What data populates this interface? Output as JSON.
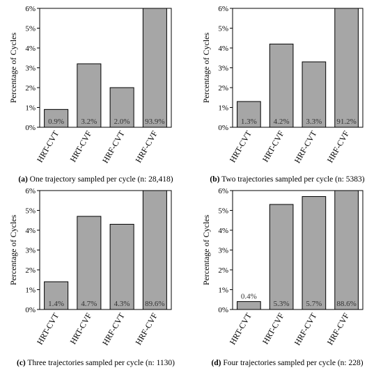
{
  "chart_data": [
    {
      "type": "bar",
      "ylabel": "Percentage of Cycles",
      "ylim": [
        0,
        6
      ],
      "yticks": [
        "0%",
        "1%",
        "2%",
        "3%",
        "4%",
        "5%",
        "6%"
      ],
      "categories": [
        "HRT-CVT",
        "HRT-CVF",
        "HRF-CVT",
        "HRF-CVF"
      ],
      "values": [
        0.9,
        3.2,
        2.0,
        93.9
      ],
      "data_labels": [
        "0.9%",
        "3.2%",
        "2.0%",
        "93.9%"
      ],
      "bar_color": "#a6a6a6",
      "caption_letter": "(a)",
      "caption_text": " One trajectory sampled per cycle (n: 28,418)"
    },
    {
      "type": "bar",
      "ylabel": "Percentage of Cycles",
      "ylim": [
        0,
        6
      ],
      "yticks": [
        "0%",
        "1%",
        "2%",
        "3%",
        "4%",
        "5%",
        "6%"
      ],
      "categories": [
        "HRT-CVT",
        "HRT-CVF",
        "HRF-CVT",
        "HRF-CVF"
      ],
      "values": [
        1.3,
        4.2,
        3.3,
        91.2
      ],
      "data_labels": [
        "1.3%",
        "4.2%",
        "3.3%",
        "91.2%"
      ],
      "bar_color": "#a6a6a6",
      "caption_letter": "(b)",
      "caption_text": " Two trajectories sampled per cycle (n: 5383)"
    },
    {
      "type": "bar",
      "ylabel": "Percentage of Cycles",
      "ylim": [
        0,
        6
      ],
      "yticks": [
        "0%",
        "1%",
        "2%",
        "3%",
        "4%",
        "5%",
        "6%"
      ],
      "categories": [
        "HRT-CVT",
        "HRT-CVF",
        "HRF-CVT",
        "HRF-CVF"
      ],
      "values": [
        1.4,
        4.7,
        4.3,
        89.6
      ],
      "data_labels": [
        "1.4%",
        "4.7%",
        "4.3%",
        "89.6%"
      ],
      "bar_color": "#a6a6a6",
      "caption_letter": "(c)",
      "caption_text": " Three trajectories sampled per cycle (n: 1130)"
    },
    {
      "type": "bar",
      "ylabel": "Percentage of Cycles",
      "ylim": [
        0,
        6
      ],
      "yticks": [
        "0%",
        "1%",
        "2%",
        "3%",
        "4%",
        "5%",
        "6%"
      ],
      "categories": [
        "HRT-CVT",
        "HRT-CVF",
        "HRF-CVT",
        "HRF-CVF"
      ],
      "values": [
        0.4,
        5.3,
        5.7,
        88.6
      ],
      "data_labels": [
        "0.4%",
        "5.3%",
        "5.7%",
        "88.6%"
      ],
      "bar_color": "#a6a6a6",
      "caption_letter": "(d)",
      "caption_text": " Four trajectories sampled per cycle (n: 228)"
    }
  ]
}
